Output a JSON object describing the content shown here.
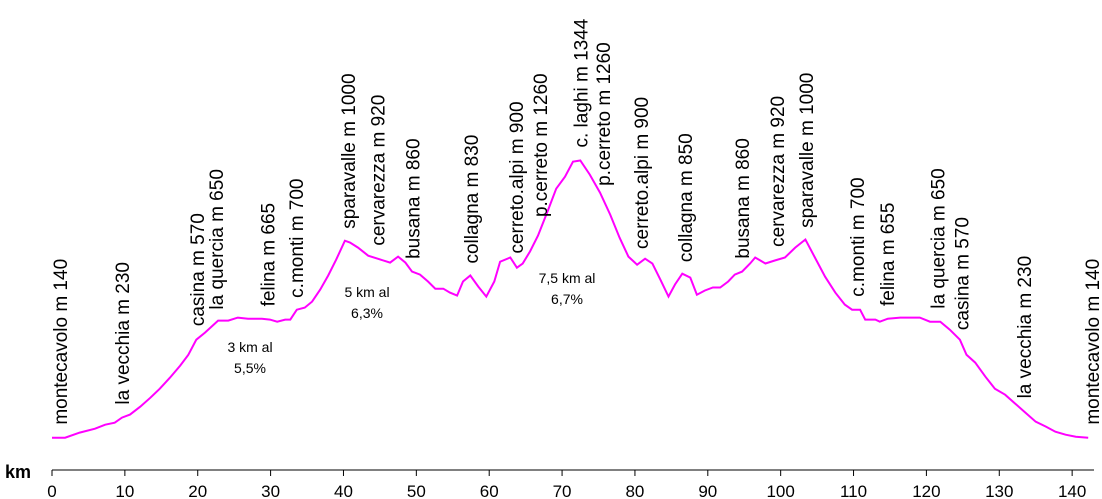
{
  "chart_data": {
    "type": "line",
    "x_label": "km",
    "color": "#ff00ff",
    "x": [
      0,
      1.8,
      3.8,
      5.9,
      7.3,
      8.6,
      9.6,
      10.7,
      12.1,
      13.5,
      14.8,
      16.2,
      17.6,
      18.7,
      19.8,
      21,
      22.8,
      24.2,
      25.5,
      26.9,
      28.8,
      29.9,
      30.9,
      32,
      32.7,
      33.6,
      34.7,
      35.7,
      36.8,
      37.9,
      39,
      40.2,
      40.9,
      42,
      43.4,
      44.7,
      46.4,
      47.5,
      48.5,
      49.4,
      50.5,
      51.6,
      52.6,
      53.7,
      54.6,
      55.6,
      56.4,
      57.4,
      58.5,
      59.6,
      60.7,
      61.5,
      62.9,
      63.8,
      64.6,
      65.6,
      66.7,
      68.1,
      69.2,
      70.4,
      71.5,
      72.5,
      73.8,
      75.2,
      76.6,
      77.9,
      79.1,
      80.3,
      81.4,
      82.4,
      83.5,
      84.6,
      85.5,
      86.5,
      87.6,
      88.5,
      89.6,
      90.7,
      91.7,
      92.8,
      93.7,
      94.7,
      95.8,
      96.5,
      97.9,
      99.2,
      100.6,
      102,
      103.4,
      104.7,
      106.1,
      107.5,
      108.8,
      109.8,
      110.9,
      111.6,
      113,
      113.6,
      114.7,
      116.4,
      118,
      119.1,
      120.5,
      121.9,
      123.2,
      124.6,
      125.5,
      126.7,
      128.1,
      129.4,
      130.8,
      132.2,
      133.6,
      135,
      136.4,
      137.7,
      139.1,
      140.5,
      142.2
    ],
    "values": [
      140,
      140,
      162,
      179,
      196,
      205,
      227,
      240,
      274,
      313,
      352,
      400,
      452,
      499,
      564,
      595,
      647,
      647,
      660,
      655,
      655,
      651,
      642,
      651,
      651,
      694,
      703,
      729,
      781,
      842,
      911,
      993,
      985,
      963,
      928,
      915,
      898,
      924,
      898,
      859,
      846,
      816,
      785,
      785,
      768,
      755,
      816,
      842,
      794,
      751,
      816,
      902,
      920,
      876,
      894,
      946,
      1015,
      1127,
      1218,
      1270,
      1335,
      1340,
      1279,
      1201,
      1106,
      1006,
      924,
      889,
      915,
      894,
      824,
      751,
      803,
      850,
      833,
      759,
      777,
      790,
      790,
      816,
      846,
      859,
      894,
      920,
      894,
      907,
      920,
      963,
      998,
      920,
      837,
      768,
      716,
      694,
      694,
      651,
      651,
      642,
      655,
      660,
      660,
      660,
      642,
      642,
      608,
      564,
      499,
      465,
      404,
      352,
      326,
      287,
      248,
      209,
      188,
      166,
      153,
      144,
      140
    ],
    "xlim": [
      0,
      143
    ],
    "ylim": [
      0,
      2035
    ],
    "xticks": [
      0,
      10,
      20,
      30,
      40,
      50,
      60,
      70,
      80,
      90,
      100,
      110,
      120,
      130,
      140
    ],
    "labels": [
      {
        "text": "montecavolo m 140",
        "x": 1.1
      },
      {
        "text": "la vecchia m 230",
        "x": 9.6
      },
      {
        "text": "casina m 570",
        "x": 19.9
      },
      {
        "text": "la quercia m 650",
        "x": 22.5
      },
      {
        "text": "felina m 665",
        "x": 29.6
      },
      {
        "text": "c.monti m 700",
        "x": 33.5
      },
      {
        "text": "sparavalle m 1000",
        "x": 40.6
      },
      {
        "text": "cervarezza m 920",
        "x": 44.7
      },
      {
        "text": "busana m 860",
        "x": 49.5
      },
      {
        "text": "collagna m 830",
        "x": 57.5
      },
      {
        "text": "cerreto.alpi m 900",
        "x": 63.7
      },
      {
        "text": "p.cerreto m 1260",
        "x": 67
      },
      {
        "text": "c. laghi m 1344",
        "x": 72.5
      },
      {
        "text": "p.cerreto m 1260",
        "x": 75.6
      },
      {
        "text": "cerreto.alpi m 900",
        "x": 80.8
      },
      {
        "text": "collagna m 850",
        "x": 86.9
      },
      {
        "text": "busana m 860",
        "x": 94.7
      },
      {
        "text": "cervarezza m 920",
        "x": 99.5
      },
      {
        "text": "sparavalle m 1000",
        "x": 103.5
      },
      {
        "text": "c.monti m 700",
        "x": 110.5
      },
      {
        "text": "felina m 655",
        "x": 114.6
      },
      {
        "text": "la quercia m 650",
        "x": 121.5
      },
      {
        "text": "casina m 570",
        "x": 124.8
      },
      {
        "text": "la vecchia m 230",
        "x": 133.4
      },
      {
        "text": "montecavolo m 140",
        "x": 142.7
      }
    ],
    "notes": [
      [
        "3 km al",
        "5,5%"
      ],
      [
        "5 km al",
        "6,3%"
      ],
      [
        "7,5 km al",
        "6,7%"
      ]
    ]
  }
}
